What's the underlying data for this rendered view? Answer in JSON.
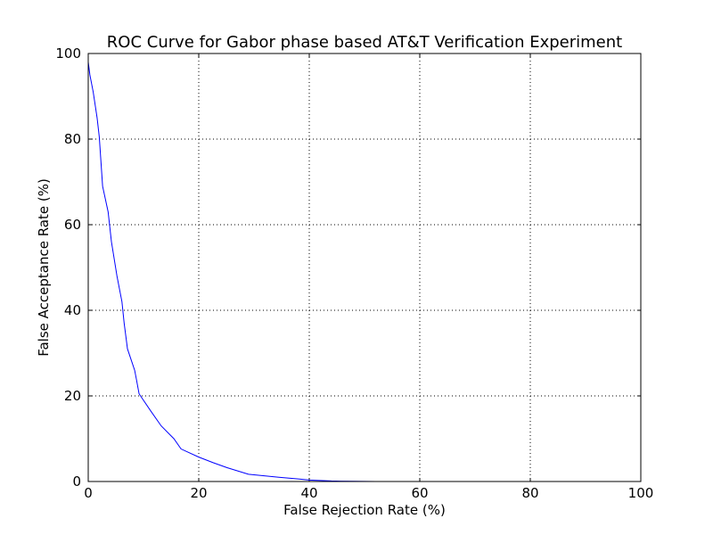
{
  "chart_data": {
    "type": "line",
    "title": "ROC Curve for Gabor phase based AT&T Verification Experiment",
    "xlabel": "False Rejection Rate (%)",
    "ylabel": "False Acceptance Rate (%)",
    "xlim": [
      0,
      100
    ],
    "ylim": [
      0,
      100
    ],
    "xticks": [
      0,
      20,
      40,
      60,
      80,
      100
    ],
    "yticks": [
      0,
      20,
      40,
      60,
      80,
      100
    ],
    "grid": true,
    "line_color": "#0000ff",
    "series": [
      {
        "x": [
          0,
          0.3,
          0.9,
          1.6,
          2.0,
          2.6,
          3.6,
          4.2,
          5.2,
          6.1,
          6.5,
          7.1,
          8.4,
          8.7,
          9.2,
          11.3,
          13.2,
          15.5,
          16.8,
          20.0,
          22.6,
          25.2,
          29.0,
          34.5,
          38.0,
          40.0,
          44.0,
          48.0,
          52.0
        ],
        "y": [
          98,
          95,
          91,
          85,
          80.5,
          69,
          63,
          56,
          48,
          42,
          37,
          31,
          26,
          24,
          20.5,
          16.5,
          13,
          10,
          7.6,
          5.7,
          4.4,
          3.2,
          1.7,
          1.0,
          0.6,
          0.35,
          0.12,
          0.04,
          0
        ]
      }
    ]
  }
}
